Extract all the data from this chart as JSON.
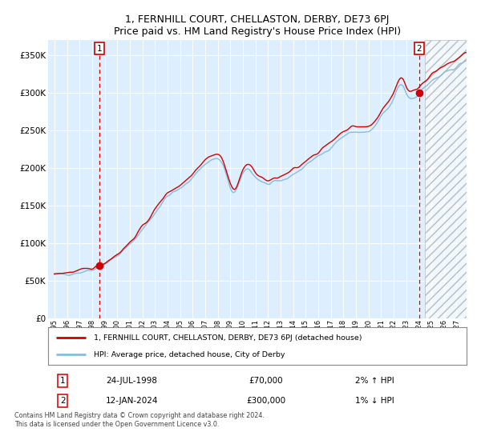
{
  "title": "1, FERNHILL COURT, CHELLASTON, DERBY, DE73 6PJ",
  "subtitle": "Price paid vs. HM Land Registry's House Price Index (HPI)",
  "legend_line1": "1, FERNHILL COURT, CHELLASTON, DERBY, DE73 6PJ (detached house)",
  "legend_line2": "HPI: Average price, detached house, City of Derby",
  "sale1_date": "24-JUL-1998",
  "sale1_price": "£70,000",
  "sale1_hpi": "2% ↑ HPI",
  "sale2_date": "12-JAN-2024",
  "sale2_price": "£300,000",
  "sale2_hpi": "1% ↓ HPI",
  "sale1_year": 1998.56,
  "sale1_value": 70000,
  "sale2_year": 2024.04,
  "sale2_value": 300000,
  "hatch_start": 2024.5,
  "hatch_end": 2027.8,
  "xmin": 1994.5,
  "xmax": 2027.8,
  "ymin": 0,
  "ymax": 370000,
  "line_color_red": "#cc0000",
  "line_color_blue": "#88bbdd",
  "bg_color": "#ddeeff",
  "grid_color": "#ffffff",
  "footer": "Contains HM Land Registry data © Crown copyright and database right 2024.\nThis data is licensed under the Open Government Licence v3.0."
}
